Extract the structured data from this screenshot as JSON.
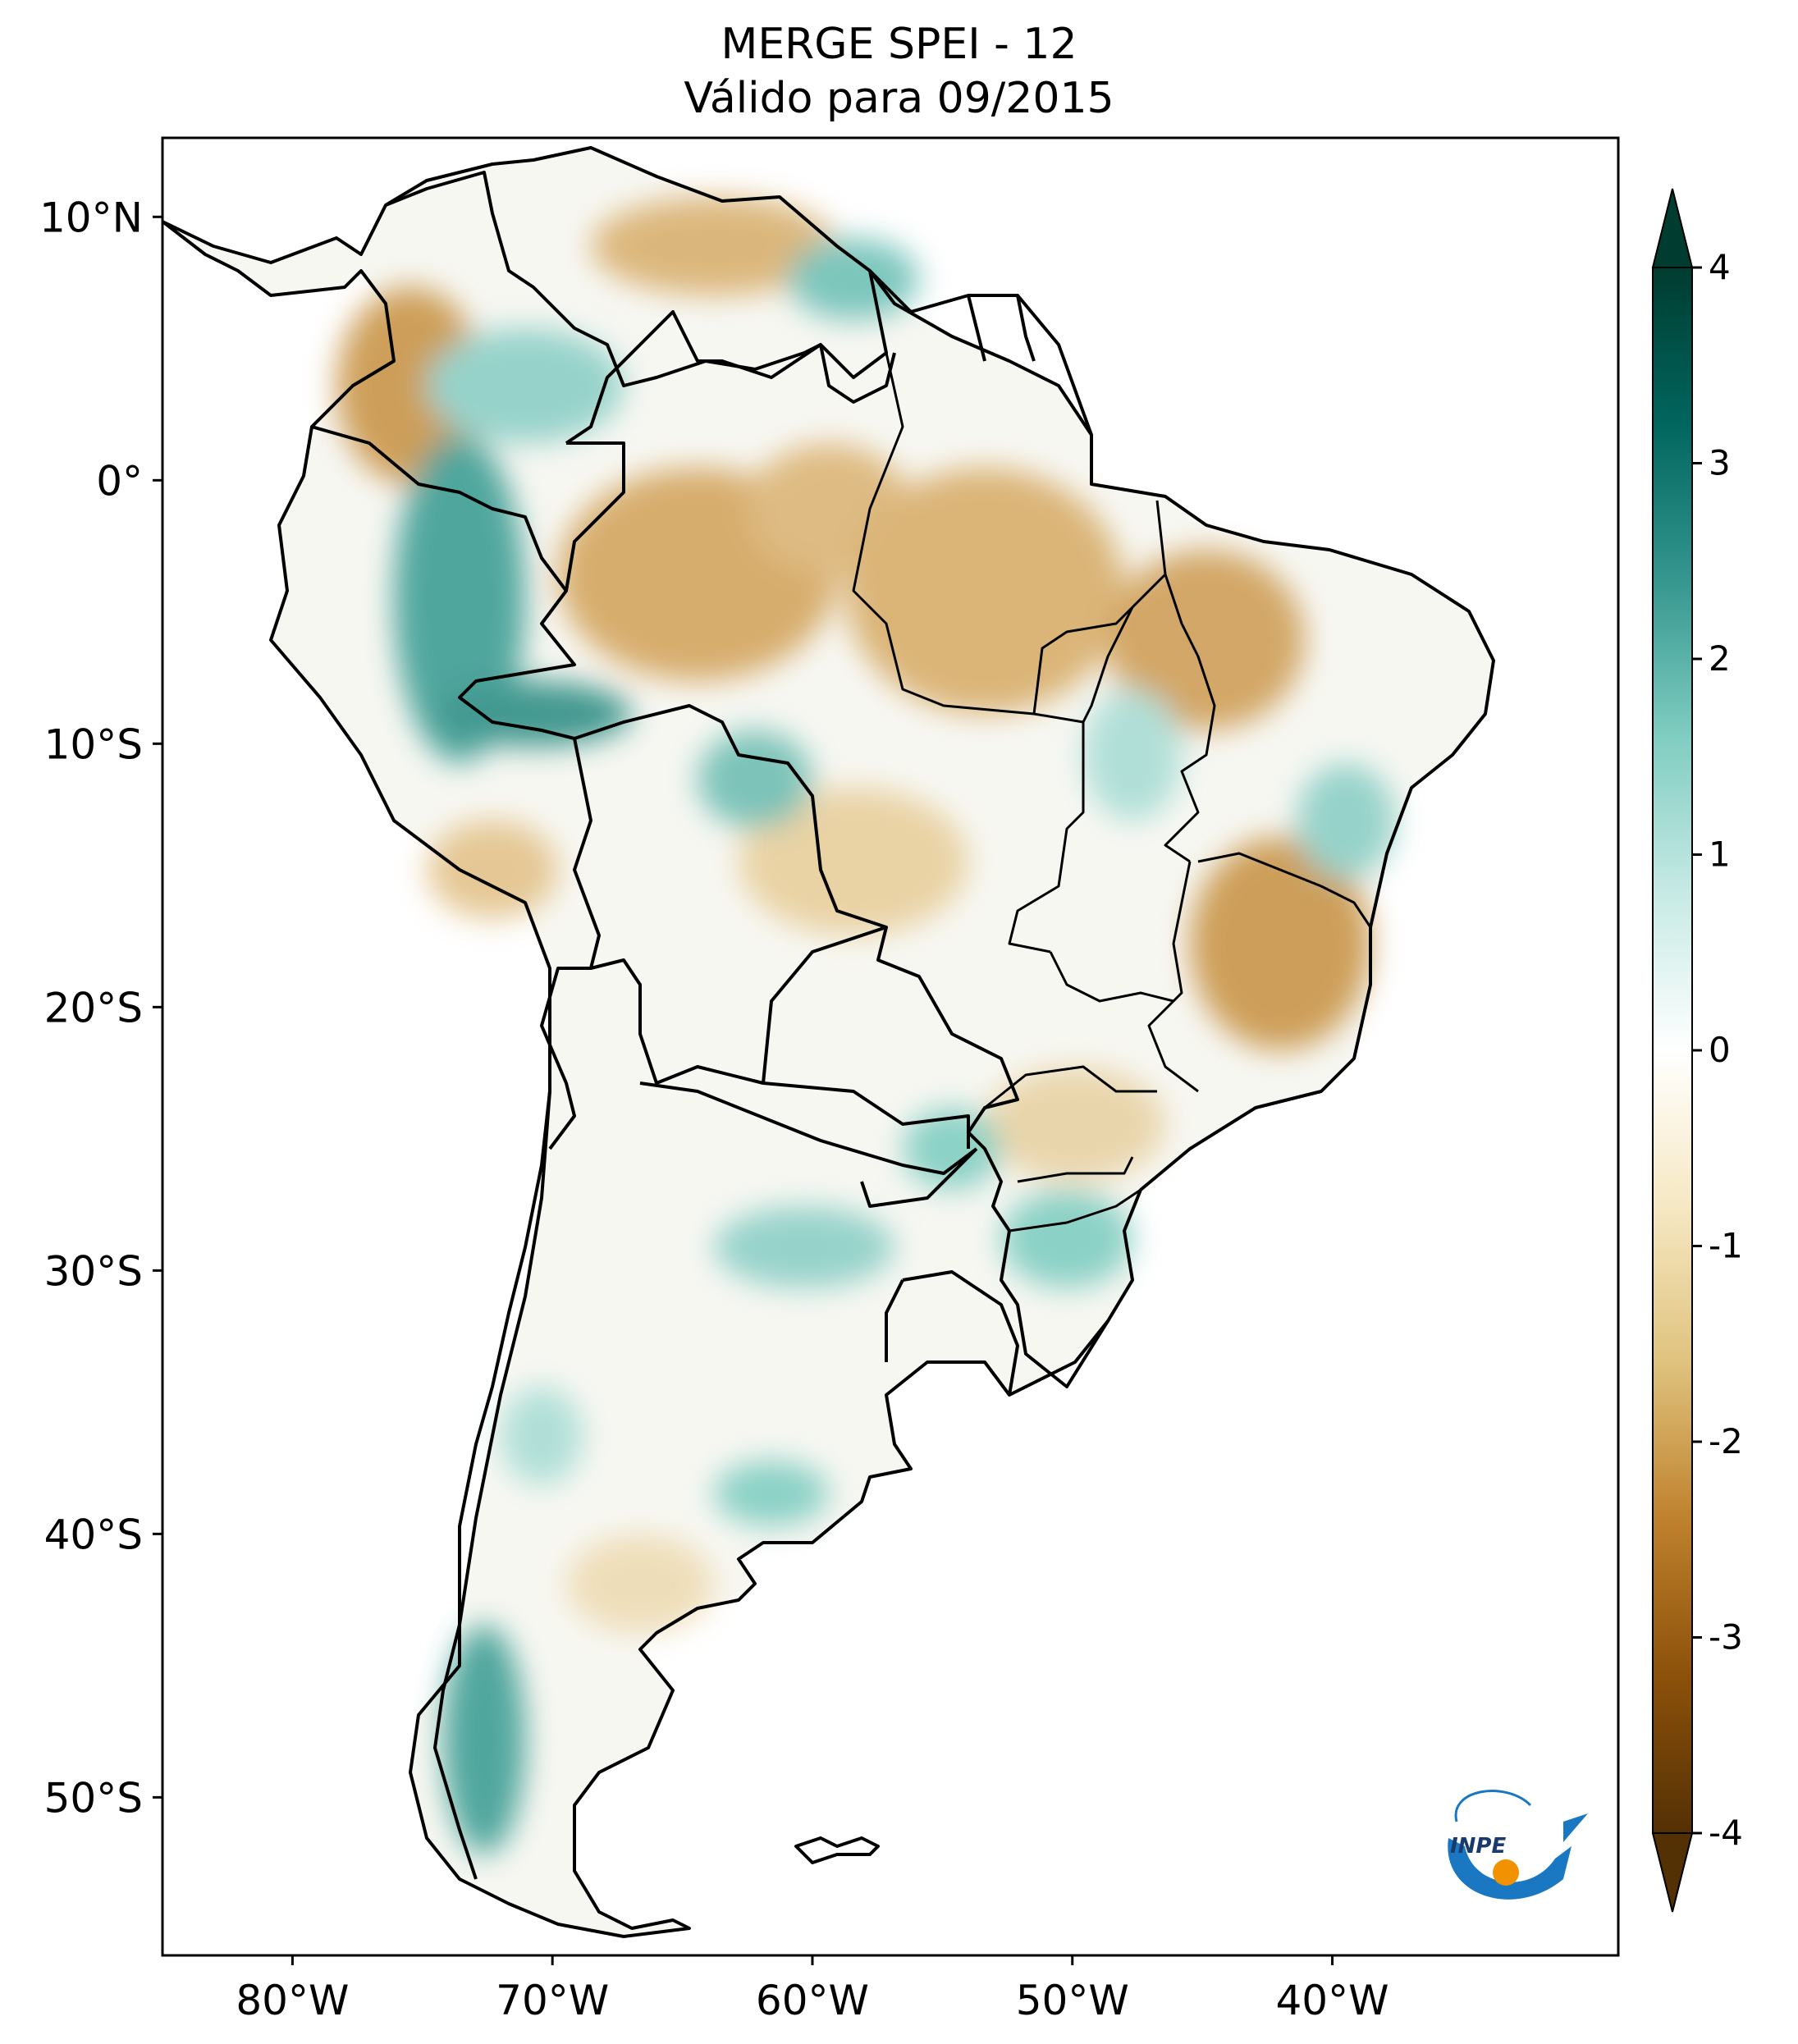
{
  "title": {
    "line1": "MERGE   SPEI - 12",
    "line2": "Válido para 09/2015"
  },
  "map": {
    "lon_range": [
      -85,
      -29
    ],
    "lat_range": [
      -56,
      13
    ],
    "lat_ticks": [
      {
        "value": 10,
        "label": "10°N"
      },
      {
        "value": 0,
        "label": "0°"
      },
      {
        "value": -10,
        "label": "10°S"
      },
      {
        "value": -20,
        "label": "20°S"
      },
      {
        "value": -30,
        "label": "30°S"
      },
      {
        "value": -40,
        "label": "40°S"
      },
      {
        "value": -50,
        "label": "50°S"
      }
    ],
    "lon_ticks": [
      {
        "value": -80,
        "label": "80°W"
      },
      {
        "value": -70,
        "label": "70°W"
      },
      {
        "value": -60,
        "label": "60°W"
      },
      {
        "value": -50,
        "label": "50°W"
      },
      {
        "value": -40,
        "label": "40°W"
      }
    ]
  },
  "colorbar": {
    "min": -4,
    "max": 4,
    "ticks": [
      "-4",
      "-3",
      "-2",
      "-1",
      "0",
      "1",
      "2",
      "3",
      "4"
    ],
    "colors": {
      "dry_extreme": "#543005",
      "dry_strong": "#8c510a",
      "dry_moderate": "#bf812d",
      "dry_mild": "#dfc27d",
      "dry_slight": "#f6e8c3",
      "neutral": "#f5f5f5",
      "wet_slight": "#c7eae5",
      "wet_mild": "#80cdc1",
      "wet_moderate": "#35978f",
      "wet_strong": "#01665e",
      "wet_extreme": "#003c30"
    }
  },
  "logo": {
    "text": "INPE",
    "colors": {
      "arrow": "#1a78c2",
      "dot": "#f39200"
    }
  }
}
